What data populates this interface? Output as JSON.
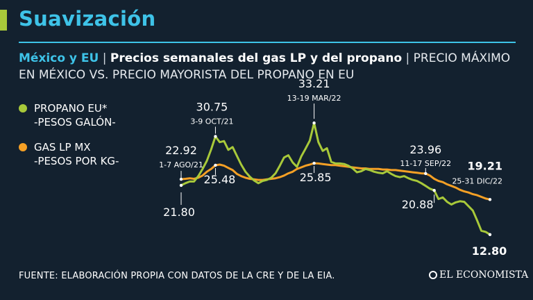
{
  "header": {
    "title": "Suavización",
    "subtitle_region": "México y EU",
    "subtitle_separator": "|",
    "subtitle_main": "Precios semanales del gas LP y del propano",
    "subtitle_unit": "PRECIO MÁXIMO EN MÉXICO VS. PRECIO MAYORISTA DEL PROPANO EN EU"
  },
  "colors": {
    "background": "#13212f",
    "title_blue": "#3ec3e8",
    "propano_green": "#a8c93a",
    "gaslp_orange": "#f5a025"
  },
  "footer": {
    "source": "FUENTE: ELABORACIÓN PROPIA CON DATOS DE LA CRE Y DE LA EIA.",
    "brand": "EL ECONOMISTA"
  },
  "chart_data": {
    "type": "line",
    "title": "Precios semanales del gas LP y del propano",
    "xlabel": "",
    "ylabel": "",
    "x_range": [
      "1-7 AGO/21",
      "25-31 DIC/22"
    ],
    "ylim": [
      11,
      35
    ],
    "grid": false,
    "legend_position": "top-left",
    "series": [
      {
        "name": "PROPANO EU*",
        "unit": "-PESOS GALÓN-",
        "color": "#a8c93a",
        "values": [
          21.8,
          22.2,
          22.5,
          22.5,
          23.5,
          24.8,
          26.3,
          28.4,
          30.75,
          29.7,
          29.9,
          28.3,
          28.8,
          27.2,
          25.6,
          24.3,
          23.4,
          22.7,
          22.2,
          22.6,
          22.8,
          23.2,
          24.0,
          25.4,
          26.9,
          27.3,
          26.0,
          25.2,
          27.1,
          28.5,
          30.0,
          33.21,
          29.7,
          28.1,
          28.6,
          26.1,
          25.8,
          25.8,
          25.7,
          25.4,
          24.9,
          24.2,
          24.4,
          24.8,
          24.6,
          24.3,
          24.1,
          24.0,
          24.4,
          23.9,
          23.5,
          23.3,
          23.5,
          23.1,
          22.8,
          22.6,
          22.2,
          21.7,
          21.2,
          20.88,
          19.3,
          19.6,
          18.8,
          18.3,
          18.7,
          18.9,
          18.8,
          18.0,
          17.2,
          15.4,
          13.5,
          13.3,
          12.8
        ],
        "labels": [
          {
            "index": 0,
            "value": "21.80",
            "date": ""
          },
          {
            "index": 8,
            "value": "30.75",
            "date": "3-9 OCT/21"
          },
          {
            "index": 31,
            "value": "33.21",
            "date": "13-19 MAR/22"
          },
          {
            "index": 59,
            "value": "20.88",
            "date": ""
          },
          {
            "index": 72,
            "value": "12.80",
            "date": ""
          }
        ]
      },
      {
        "name": "GAS LP MX",
        "unit": "-PESOS POR KG-",
        "color": "#f5a025",
        "values": [
          22.92,
          23.0,
          23.1,
          23.0,
          23.2,
          23.6,
          24.3,
          24.8,
          25.48,
          25.6,
          25.4,
          25.0,
          24.6,
          23.9,
          23.5,
          23.2,
          23.0,
          22.9,
          22.8,
          22.8,
          22.9,
          23.0,
          23.1,
          23.3,
          23.6,
          24.0,
          24.3,
          24.8,
          25.1,
          25.4,
          25.6,
          25.85,
          25.8,
          25.7,
          25.6,
          25.5,
          25.5,
          25.4,
          25.3,
          25.2,
          25.1,
          25.0,
          24.9,
          24.9,
          24.8,
          24.8,
          24.8,
          24.7,
          24.7,
          24.6,
          24.6,
          24.5,
          24.4,
          24.3,
          24.2,
          24.1,
          24.0,
          23.96,
          23.6,
          23.0,
          22.6,
          22.4,
          22.0,
          21.7,
          21.4,
          21.0,
          20.7,
          20.5,
          20.2,
          20.0,
          19.7,
          19.4,
          19.21
        ],
        "labels": [
          {
            "index": 0,
            "value": "22.92",
            "date": "1-7 AGO/21"
          },
          {
            "index": 8,
            "value": "25.48",
            "date": ""
          },
          {
            "index": 31,
            "value": "25.85",
            "date": ""
          },
          {
            "index": 57,
            "value": "23.96",
            "date": "11-17 SEP/22"
          },
          {
            "index": 72,
            "value": "19.21",
            "date": "25-31 DIC/22"
          }
        ]
      }
    ]
  }
}
